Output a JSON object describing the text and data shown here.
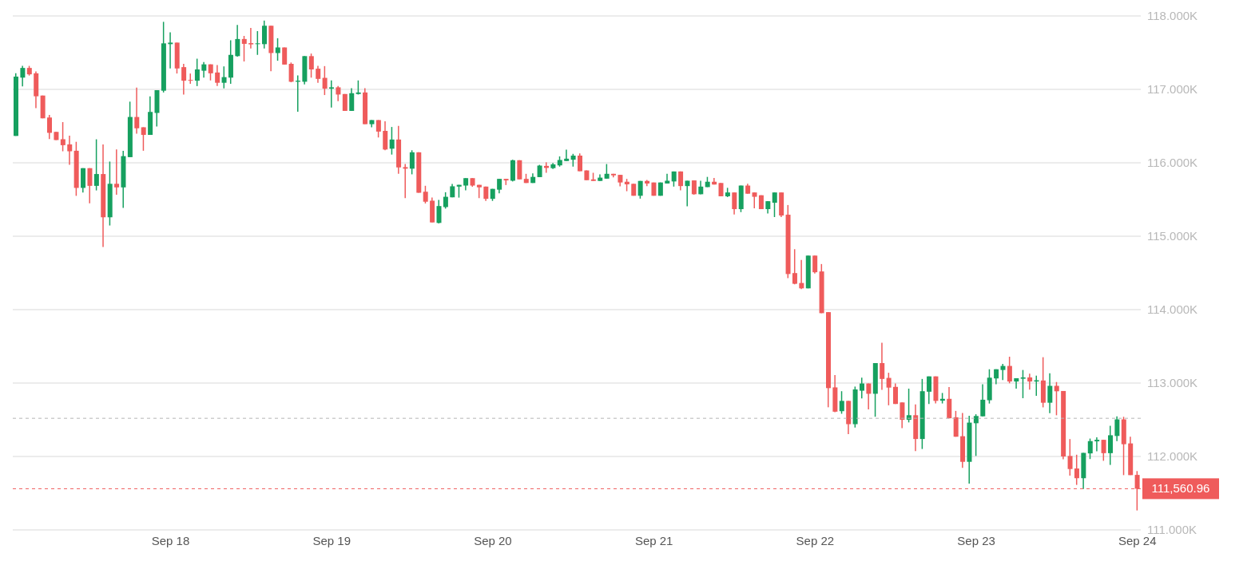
{
  "chart_data": {
    "type": "candlestick",
    "categories": [
      null,
      null,
      null,
      null,
      null,
      null,
      null,
      null,
      null,
      null,
      null,
      null,
      null,
      null,
      null,
      null,
      null,
      null,
      null,
      null,
      null,
      null,
      null,
      "Sep 18",
      null,
      null,
      null,
      null,
      null,
      null,
      null,
      null,
      null,
      null,
      null,
      null,
      null,
      null,
      null,
      null,
      null,
      null,
      null,
      null,
      null,
      null,
      null,
      "Sep 19",
      null,
      null,
      null,
      null,
      null,
      null,
      null,
      null,
      null,
      null,
      null,
      null,
      null,
      null,
      null,
      null,
      null,
      null,
      null,
      null,
      null,
      null,
      null,
      "Sep 20",
      null,
      null,
      null,
      null,
      null,
      null,
      null,
      null,
      null,
      null,
      null,
      null,
      null,
      null,
      null,
      null,
      null,
      null,
      null,
      null,
      null,
      null,
      null,
      "Sep 21",
      null,
      null,
      null,
      null,
      null,
      null,
      null,
      null,
      null,
      null,
      null,
      null,
      null,
      null,
      null,
      null,
      null,
      null,
      null,
      null,
      null,
      null,
      null,
      "Sep 22",
      null,
      null,
      null,
      null,
      null,
      null,
      null,
      null,
      null,
      null,
      null,
      null,
      null,
      null,
      null,
      null,
      null,
      null,
      null,
      null,
      null,
      null,
      null,
      "Sep 23",
      null,
      null,
      null,
      null,
      null,
      null,
      null,
      null,
      null,
      null,
      null,
      null,
      null,
      null,
      null,
      null,
      null,
      null,
      null,
      null,
      null,
      null,
      null,
      "Sep 24"
    ],
    "ohlc": [
      [
        116366,
        117219,
        116366,
        117174
      ],
      [
        117160,
        117320,
        117042,
        117292
      ],
      [
        117292,
        117320,
        117188,
        117205
      ],
      [
        117219,
        117244,
        116745,
        116906
      ],
      [
        116916,
        116916,
        116606,
        116606
      ],
      [
        116617,
        116651,
        116324,
        116408
      ],
      [
        116421,
        116421,
        116310,
        116310
      ],
      [
        116321,
        116554,
        116157,
        116240
      ],
      [
        116251,
        116369,
        115972,
        116157
      ],
      [
        116164,
        116286,
        115550,
        115658
      ],
      [
        115658,
        115927,
        115596,
        115927
      ],
      [
        115927,
        115927,
        115449,
        115686
      ],
      [
        115686,
        116320,
        115624,
        115847
      ],
      [
        115847,
        116251,
        114854,
        115258
      ],
      [
        115258,
        116017,
        115146,
        115714
      ],
      [
        115714,
        116181,
        115564,
        115665
      ],
      [
        115665,
        116164,
        115387,
        116091
      ],
      [
        116077,
        116833,
        116077,
        116624
      ],
      [
        116624,
        117024,
        116397,
        116470
      ],
      [
        116484,
        116484,
        116164,
        116380
      ],
      [
        116380,
        116906,
        116380,
        116693
      ],
      [
        116679,
        116989,
        116495,
        116989
      ],
      [
        116982,
        117920,
        116958,
        117627
      ],
      [
        117616,
        117777,
        117285,
        117637
      ],
      [
        117637,
        117637,
        117216,
        117285
      ],
      [
        117303,
        117348,
        116930,
        117118
      ],
      [
        117125,
        117216,
        117076,
        117118
      ],
      [
        117118,
        117418,
        117045,
        117272
      ],
      [
        117254,
        117373,
        117160,
        117341
      ],
      [
        117341,
        117341,
        117122,
        117219
      ],
      [
        117230,
        117331,
        117045,
        117090
      ],
      [
        117090,
        117313,
        117014,
        117167
      ],
      [
        117160,
        117669,
        117076,
        117470
      ],
      [
        117453,
        117878,
        117446,
        117686
      ],
      [
        117686,
        117728,
        117380,
        117620
      ],
      [
        117630,
        117836,
        117557,
        117613
      ],
      [
        117616,
        117794,
        117470,
        117627
      ],
      [
        117616,
        117937,
        117557,
        117867
      ],
      [
        117867,
        117867,
        117247,
        117495
      ],
      [
        117495,
        117697,
        117390,
        117571
      ],
      [
        117571,
        117571,
        117338,
        117338
      ],
      [
        117348,
        117366,
        117097,
        117104
      ],
      [
        117104,
        117191,
        116697,
        117118
      ],
      [
        117104,
        117453,
        117069,
        117453
      ],
      [
        117453,
        117488,
        117160,
        117272
      ],
      [
        117282,
        117320,
        117090,
        117143
      ],
      [
        117157,
        117317,
        116923,
        117010
      ],
      [
        117010,
        117122,
        116752,
        117028
      ],
      [
        117028,
        117045,
        116840,
        116930
      ],
      [
        116937,
        116937,
        116707,
        116707
      ],
      [
        116707,
        117017,
        116707,
        116948
      ],
      [
        116937,
        117122,
        116930,
        116958
      ],
      [
        116958,
        117017,
        116526,
        116526
      ],
      [
        116526,
        116582,
        116484,
        116582
      ],
      [
        116582,
        116582,
        116345,
        116425
      ],
      [
        116435,
        116564,
        116171,
        116181
      ],
      [
        116192,
        116488,
        116112,
        116317
      ],
      [
        116317,
        116502,
        115850,
        115937
      ],
      [
        115941,
        115983,
        115519,
        115920
      ],
      [
        115920,
        116171,
        115843,
        116143
      ],
      [
        116143,
        116143,
        115592,
        115592
      ],
      [
        115606,
        115687,
        115446,
        115470
      ],
      [
        115484,
        115526,
        115188,
        115188
      ],
      [
        115181,
        115495,
        115174,
        115411
      ],
      [
        115397,
        115599,
        115376,
        115537
      ],
      [
        115530,
        115711,
        115530,
        115680
      ],
      [
        115676,
        115700,
        115526,
        115700
      ],
      [
        115690,
        115791,
        115624,
        115791
      ],
      [
        115791,
        115791,
        115673,
        115690
      ],
      [
        115700,
        115700,
        115519,
        115666
      ],
      [
        115676,
        115676,
        115481,
        115509
      ],
      [
        115509,
        115645,
        115481,
        115645
      ],
      [
        115634,
        115781,
        115585,
        115781
      ],
      [
        115781,
        115781,
        115697,
        115760
      ],
      [
        115756,
        116042,
        115746,
        116035
      ],
      [
        116035,
        116035,
        115774,
        115774
      ],
      [
        115781,
        115850,
        115725,
        115725
      ],
      [
        115725,
        115857,
        115725,
        115808
      ],
      [
        115805,
        115972,
        115805,
        115962
      ],
      [
        115958,
        116007,
        115864,
        115930
      ],
      [
        115927,
        115997,
        115916,
        115979
      ],
      [
        115965,
        116087,
        115948,
        116038
      ],
      [
        116024,
        116178,
        116024,
        116056
      ],
      [
        116042,
        116122,
        115948,
        116098
      ],
      [
        116098,
        116129,
        115885,
        115885
      ],
      [
        115896,
        115896,
        115763,
        115763
      ],
      [
        115774,
        115864,
        115753,
        115753
      ],
      [
        115753,
        115843,
        115753,
        115798
      ],
      [
        115784,
        115983,
        115784,
        115850
      ],
      [
        115850,
        115850,
        115801,
        115829
      ],
      [
        115836,
        115836,
        115680,
        115732
      ],
      [
        115742,
        115781,
        115613,
        115707
      ],
      [
        115714,
        115714,
        115551,
        115551
      ],
      [
        115551,
        115753,
        115512,
        115753
      ],
      [
        115753,
        115767,
        115683,
        115718
      ],
      [
        115732,
        115732,
        115551,
        115551
      ],
      [
        115551,
        115732,
        115551,
        115732
      ],
      [
        115718,
        115850,
        115718,
        115756
      ],
      [
        115746,
        115882,
        115676,
        115882
      ],
      [
        115882,
        115882,
        115624,
        115683
      ],
      [
        115683,
        115756,
        115408,
        115756
      ],
      [
        115760,
        115760,
        115565,
        115572
      ],
      [
        115572,
        115756,
        115572,
        115676
      ],
      [
        115669,
        115808,
        115669,
        115742
      ],
      [
        115742,
        115794,
        115704,
        115704
      ],
      [
        115725,
        115725,
        115544,
        115544
      ],
      [
        115544,
        115659,
        115533,
        115596
      ],
      [
        115596,
        115596,
        115296,
        115369
      ],
      [
        115369,
        115690,
        115328,
        115690
      ],
      [
        115690,
        115714,
        115579,
        115579
      ],
      [
        115596,
        115596,
        115380,
        115537
      ],
      [
        115558,
        115558,
        115369,
        115369
      ],
      [
        115369,
        115477,
        115310,
        115477
      ],
      [
        115456,
        115596,
        115261,
        115596
      ],
      [
        115596,
        115596,
        115261,
        115282
      ],
      [
        115293,
        115425,
        114429,
        114485
      ],
      [
        114498,
        114823,
        114345,
        114352
      ],
      [
        114363,
        114676,
        114279,
        114290
      ],
      [
        114290,
        114736,
        114290,
        114736
      ],
      [
        114736,
        114736,
        114492,
        114509
      ],
      [
        114520,
        114621,
        113952,
        113952
      ],
      [
        113966,
        113966,
        112670,
        112931
      ],
      [
        112941,
        113109,
        112603,
        112610
      ],
      [
        112617,
        112889,
        112582,
        112757
      ],
      [
        112757,
        112757,
        112304,
        112440
      ],
      [
        112440,
        112952,
        112394,
        112913
      ],
      [
        112896,
        113074,
        112792,
        112994
      ],
      [
        112994,
        112994,
        112642,
        112854
      ],
      [
        112854,
        113272,
        112541,
        113272
      ],
      [
        113272,
        113548,
        112907,
        113056
      ],
      [
        113070,
        113140,
        112697,
        112938
      ],
      [
        112948,
        112994,
        112715,
        112715
      ],
      [
        112736,
        112736,
        112387,
        112499
      ],
      [
        112499,
        112924,
        112464,
        112562
      ],
      [
        112562,
        112708,
        112074,
        112238
      ],
      [
        112238,
        113056,
        112102,
        112889
      ],
      [
        112882,
        113091,
        112715,
        113091
      ],
      [
        113091,
        113091,
        112722,
        112757
      ],
      [
        112760,
        112865,
        112722,
        112785
      ],
      [
        112785,
        112945,
        112520,
        112520
      ],
      [
        112534,
        112621,
        112269,
        112269
      ],
      [
        112276,
        112593,
        111844,
        111927
      ],
      [
        111927,
        112555,
        111631,
        112461
      ],
      [
        112453,
        112575,
        112007,
        112551
      ],
      [
        112547,
        112983,
        112547,
        112773
      ],
      [
        112766,
        113188,
        112721,
        113073
      ],
      [
        113063,
        113188,
        112983,
        113188
      ],
      [
        113178,
        113261,
        113042,
        113233
      ],
      [
        113233,
        113359,
        112997,
        113021
      ],
      [
        113021,
        113066,
        112923,
        113066
      ],
      [
        113059,
        113178,
        112794,
        113077
      ],
      [
        113077,
        113129,
        112909,
        113021
      ],
      [
        113021,
        113101,
        112826,
        113038
      ],
      [
        113035,
        113352,
        112669,
        112732
      ],
      [
        112732,
        113132,
        112589,
        112962
      ],
      [
        112962,
        113014,
        112561,
        112888
      ],
      [
        112892,
        112892,
        111962,
        112000
      ],
      [
        112007,
        112237,
        111739,
        111829
      ],
      [
        111836,
        112024,
        111613,
        111704
      ],
      [
        111704,
        112049,
        111558,
        112049
      ],
      [
        112042,
        112244,
        111965,
        112209
      ],
      [
        112206,
        112261,
        112070,
        112227
      ],
      [
        112227,
        112227,
        111941,
        112045
      ],
      [
        112045,
        112418,
        111885,
        112289
      ],
      [
        112279,
        112547,
        112209,
        112505
      ],
      [
        112505,
        112540,
        111746,
        112167
      ],
      [
        112178,
        112268,
        111746,
        111746
      ],
      [
        111749,
        111801,
        111265,
        111560.96
      ]
    ],
    "colors": [
      "#16a05f",
      "#16a05f",
      "#ef5b5b",
      "#ef5b5b",
      "#ef5b5b",
      "#ef5b5b",
      "#ef5b5b",
      "#ef5b5b",
      "#ef5b5b",
      "#ef5b5b",
      "#16a05f",
      "#ef5b5b",
      "#16a05f",
      "#ef5b5b",
      "#16a05f",
      "#ef5b5b",
      "#16a05f",
      "#16a05f",
      "#ef5b5b",
      "#ef5b5b",
      "#16a05f",
      "#16a05f",
      "#16a05f",
      "#16a05f",
      "#ef5b5b",
      "#ef5b5b",
      "#ef5b5b",
      "#16a05f",
      "#16a05f",
      "#ef5b5b",
      "#ef5b5b",
      "#16a05f",
      "#16a05f",
      "#16a05f",
      "#ef5b5b",
      "#ef5b5b",
      "#16a05f",
      "#16a05f",
      "#ef5b5b",
      "#16a05f",
      "#ef5b5b",
      "#ef5b5b",
      "#16a05f",
      "#16a05f",
      "#ef5b5b",
      "#ef5b5b",
      "#ef5b5b",
      "#16a05f",
      "#ef5b5b",
      "#ef5b5b",
      "#16a05f",
      "#16a05f",
      "#ef5b5b",
      "#16a05f",
      "#ef5b5b",
      "#ef5b5b",
      "#16a05f",
      "#ef5b5b",
      "#ef5b5b",
      "#16a05f",
      "#ef5b5b",
      "#ef5b5b",
      "#ef5b5b",
      "#16a05f",
      "#16a05f",
      "#16a05f",
      "#16a05f",
      "#16a05f",
      "#ef5b5b",
      "#ef5b5b",
      "#ef5b5b",
      "#16a05f",
      "#16a05f",
      "#ef5b5b",
      "#16a05f",
      "#ef5b5b",
      "#ef5b5b",
      "#16a05f",
      "#16a05f",
      "#ef5b5b",
      "#16a05f",
      "#16a05f",
      "#16a05f",
      "#16a05f",
      "#ef5b5b",
      "#ef5b5b",
      "#ef5b5b",
      "#16a05f",
      "#16a05f",
      "#ef5b5b",
      "#ef5b5b",
      "#ef5b5b",
      "#ef5b5b",
      "#16a05f",
      "#ef5b5b",
      "#ef5b5b",
      "#16a05f",
      "#16a05f",
      "#16a05f",
      "#ef5b5b",
      "#16a05f",
      "#ef5b5b",
      "#16a05f",
      "#16a05f",
      "#ef5b5b",
      "#ef5b5b",
      "#16a05f",
      "#ef5b5b",
      "#16a05f",
      "#ef5b5b",
      "#ef5b5b",
      "#ef5b5b",
      "#16a05f",
      "#16a05f",
      "#ef5b5b",
      "#ef5b5b",
      "#ef5b5b",
      "#ef5b5b",
      "#16a05f",
      "#ef5b5b",
      "#ef5b5b",
      "#ef5b5b",
      "#ef5b5b",
      "#16a05f",
      "#ef5b5b",
      "#16a05f",
      "#16a05f",
      "#ef5b5b",
      "#16a05f",
      "#ef5b5b",
      "#ef5b5b",
      "#ef5b5b",
      "#ef5b5b",
      "#16a05f",
      "#ef5b5b",
      "#16a05f",
      "#16a05f",
      "#ef5b5b",
      "#16a05f",
      "#ef5b5b",
      "#ef5b5b",
      "#ef5b5b",
      "#16a05f",
      "#16a05f",
      "#16a05f",
      "#16a05f",
      "#16a05f",
      "#16a05f",
      "#ef5b5b",
      "#16a05f",
      "#16a05f",
      "#ef5b5b",
      "#16a05f",
      "#ef5b5b",
      "#16a05f",
      "#ef5b5b",
      "#ef5b5b",
      "#ef5b5b",
      "#ef5b5b",
      "#16a05f",
      "#16a05f",
      "#16a05f",
      "#ef5b5b",
      "#16a05f",
      "#16a05f",
      "#ef5b5b",
      "#ef5b5b",
      "#ef5b5b"
    ],
    "ylim": [
      111000,
      118000
    ],
    "yticks": [
      {
        "value": 111000,
        "label": "111.000K"
      },
      {
        "value": 112000,
        "label": "112.000K"
      },
      {
        "value": 113000,
        "label": "113.000K"
      },
      {
        "value": 114000,
        "label": "114.000K"
      },
      {
        "value": 115000,
        "label": "115.000K"
      },
      {
        "value": 116000,
        "label": "116.000K"
      },
      {
        "value": 117000,
        "label": "117.000K"
      },
      {
        "value": 118000,
        "label": "118.000K"
      }
    ],
    "grid": "y",
    "ref_lines": [
      {
        "axis": "y",
        "value": 112520,
        "line_style": "dashed"
      },
      {
        "axis": "y",
        "value": 111560.96,
        "label": "111,560.96",
        "color": "#ef5b5b",
        "line_style": "dashed"
      }
    ]
  }
}
